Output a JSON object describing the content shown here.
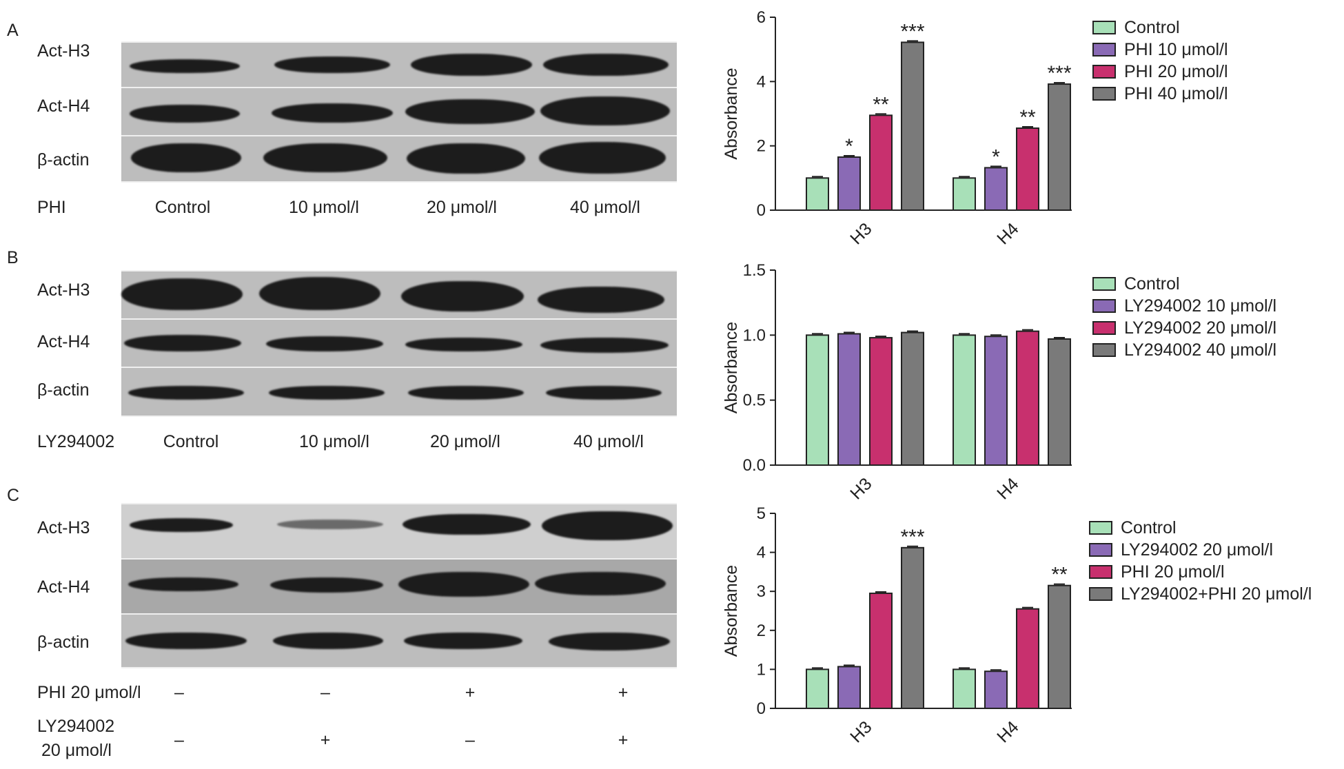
{
  "panels": [
    {
      "letter": "A",
      "blot": {
        "rows": [
          "Act-H3",
          "Act-H4",
          "β-actin"
        ],
        "treatment_label": "PHI",
        "conditions": [
          "Control",
          "10 μmol/l",
          "20 μmol/l",
          "40 μmol/l"
        ]
      },
      "legend": [
        "Control",
        "PHI 10 μmol/l",
        "PHI 20 μmol/l",
        "PHI 40 μmol/l"
      ]
    },
    {
      "letter": "B",
      "blot": {
        "rows": [
          "Act-H3",
          "Act-H4",
          "β-actin"
        ],
        "treatment_label": "LY294002",
        "conditions": [
          "Control",
          "10 μmol/l",
          "20 μmol/l",
          "40 μmol/l"
        ]
      },
      "legend": [
        "Control",
        "LY294002 10 μmol/l",
        "LY294002 20 μmol/l",
        "LY294002 40 μmol/l"
      ]
    },
    {
      "letter": "C",
      "blot": {
        "rows": [
          "Act-H3",
          "Act-H4",
          "β-actin"
        ],
        "treatment_rows": [
          {
            "label": "PHI 20 μmol/l",
            "marks": [
              "–",
              "–",
              "+",
              "+"
            ]
          },
          {
            "label_line1": "LY294002",
            "label_line2": "20 μmol/l",
            "marks": [
              "–",
              "+",
              "–",
              "+"
            ]
          }
        ]
      },
      "legend": [
        "Control",
        "LY294002 20 μmol/l",
        "PHI 20 μmol/l",
        "LY294002+PHI 20 μmol/l"
      ]
    }
  ],
  "series_colors": [
    "#a8e0b8",
    "#8a6ab5",
    "#c8306e",
    "#7a7a7a"
  ],
  "chart_data": [
    {
      "type": "bar",
      "categories": [
        "H3",
        "H4"
      ],
      "series": [
        {
          "name": "Control",
          "values": [
            1.0,
            1.0
          ]
        },
        {
          "name": "PHI 10 μmol/l",
          "values": [
            1.65,
            1.32
          ]
        },
        {
          "name": "PHI 20 μmol/l",
          "values": [
            2.95,
            2.55
          ]
        },
        {
          "name": "PHI 40 μmol/l",
          "values": [
            5.22,
            3.92
          ]
        }
      ],
      "significance": [
        [
          "",
          "*",
          "**",
          "***"
        ],
        [
          "",
          "*",
          "**",
          "***"
        ]
      ],
      "ylabel": "Absorbance",
      "ylim": [
        0,
        6
      ],
      "yticks": [
        "0",
        "2",
        "4",
        "6"
      ],
      "grid": false,
      "legend_position": "right"
    },
    {
      "type": "bar",
      "categories": [
        "H3",
        "H4"
      ],
      "series": [
        {
          "name": "Control",
          "values": [
            1.0,
            1.0
          ]
        },
        {
          "name": "LY294002 10 μmol/l",
          "values": [
            1.01,
            0.99
          ]
        },
        {
          "name": "LY294002 20 μmol/l",
          "values": [
            0.98,
            1.03
          ]
        },
        {
          "name": "LY294002 40 μmol/l",
          "values": [
            1.02,
            0.97
          ]
        }
      ],
      "significance": [
        [
          "",
          "",
          "",
          ""
        ],
        [
          "",
          "",
          "",
          ""
        ]
      ],
      "ylabel": "Absorbance",
      "ylim": [
        0,
        1.5
      ],
      "yticks": [
        "0.0",
        "0.5",
        "1.0",
        "1.5"
      ],
      "grid": false,
      "legend_position": "right"
    },
    {
      "type": "bar",
      "categories": [
        "H3",
        "H4"
      ],
      "series": [
        {
          "name": "Control",
          "values": [
            1.0,
            1.0
          ]
        },
        {
          "name": "LY294002 20 μmol/l",
          "values": [
            1.07,
            0.95
          ]
        },
        {
          "name": "PHI 20 μmol/l",
          "values": [
            2.95,
            2.55
          ]
        },
        {
          "name": "LY294002+PHI 20 μmol/l",
          "values": [
            4.12,
            3.15
          ]
        }
      ],
      "significance": [
        [
          "",
          "",
          "",
          "***"
        ],
        [
          "",
          "",
          "",
          "**"
        ]
      ],
      "ylabel": "Absorbance",
      "ylim": [
        0,
        5
      ],
      "yticks": [
        "0",
        "1",
        "2",
        "3",
        "4",
        "5"
      ],
      "grid": false,
      "legend_position": "right"
    }
  ]
}
